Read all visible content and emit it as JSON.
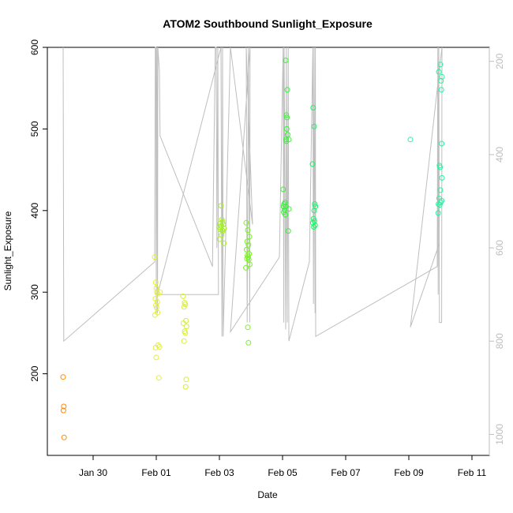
{
  "chart_data": {
    "type": "scatter",
    "title": "ATOM2 Southbound Sunlight_Exposure",
    "xlabel": "Date",
    "ylabel": "Sunlight_Exposure",
    "x_tick_labels": [
      "Jan 30",
      "Feb 01",
      "Feb 03",
      "Feb 05",
      "Feb 07",
      "Feb 09",
      "Feb 11"
    ],
    "x_tick_days": [
      0,
      2,
      4,
      6,
      8,
      10,
      12
    ],
    "xlim_days": [
      -1.45,
      12.55
    ],
    "y_ticks": [
      200,
      300,
      400,
      500,
      600
    ],
    "ylim": [
      100,
      600
    ],
    "y2_ticks": [
      200,
      400,
      600,
      800,
      1000
    ],
    "y2lim": [
      1045,
      170
    ],
    "grid": false,
    "legend": "none",
    "line_color": "#bebebe",
    "series": [
      {
        "color": "#ff8c00",
        "x_days": [
          -0.95,
          -0.93,
          -0.94,
          -0.92
        ],
        "y": [
          196,
          160,
          155,
          122
        ]
      },
      {
        "color": "#e4f03a",
        "x_days": [
          1.95,
          1.98,
          2.0,
          2.02,
          2.05,
          1.97,
          2.03,
          1.99,
          2.01,
          2.04,
          1.96,
          2.06,
          1.98,
          2.0,
          2.1,
          2.08,
          2.12
        ],
        "y": [
          343,
          312,
          305,
          300,
          298,
          292,
          288,
          284,
          281,
          275,
          272,
          235,
          232,
          220,
          233,
          195,
          300
        ]
      },
      {
        "color": "#d7f02e",
        "x_days": [
          2.85,
          2.9,
          2.92,
          2.88,
          2.94,
          2.86,
          2.96,
          2.9,
          2.92,
          2.88,
          2.95,
          2.93
        ],
        "y": [
          295,
          287,
          285,
          282,
          265,
          262,
          258,
          252,
          250,
          240,
          193,
          184
        ]
      },
      {
        "color": "#a6f02a",
        "x_days": [
          4.05,
          4.08,
          4.1,
          4.02,
          4.12,
          4.06,
          4.0,
          4.15,
          4.03,
          4.09,
          4.11,
          4.07,
          4.01,
          4.14
        ],
        "y": [
          406,
          389,
          386,
          384,
          383,
          381,
          380,
          378,
          377,
          376,
          375,
          370,
          365,
          360
        ]
      },
      {
        "color": "#7cf02a",
        "x_days": [
          4.85,
          4.9,
          4.95,
          4.88,
          4.92,
          4.86,
          4.94,
          4.89,
          4.91,
          4.87,
          4.93,
          4.96,
          4.84,
          4.9,
          4.92
        ],
        "y": [
          385,
          376,
          368,
          362,
          358,
          352,
          347,
          345,
          343,
          341,
          340,
          334,
          330,
          257,
          238
        ]
      },
      {
        "color": "#3cf03c",
        "x_days": [
          6.1,
          6.15,
          6.12,
          6.14,
          6.13,
          6.16,
          6.11,
          6.12,
          6.02,
          6.08,
          6.05,
          6.1,
          6.06,
          6.04,
          6.09,
          6.2,
          6.03,
          6.18,
          6.2
        ],
        "y": [
          584,
          548,
          517,
          514,
          500,
          493,
          487,
          485,
          426,
          410,
          408,
          405,
          401,
          398,
          395,
          402,
          405,
          375,
          487
        ]
      },
      {
        "color": "#22f06a",
        "x_days": [
          6.97,
          7.0,
          6.95,
          7.02,
          7.04,
          7.0,
          6.98,
          7.01,
          6.96,
          7.03,
          6.99
        ],
        "y": [
          526,
          503,
          457,
          408,
          405,
          400,
          390,
          387,
          385,
          382,
          380
        ]
      },
      {
        "color": "#2af0a0",
        "x_days": [
          11.0,
          10.95,
          11.05,
          11.02,
          11.03,
          11.04,
          10.97,
          10.99,
          11.05,
          11.0,
          10.96,
          11.04,
          11.01,
          10.94,
          10.98,
          10.93
        ],
        "y": [
          579,
          570,
          564,
          559,
          548,
          482,
          455,
          453,
          440,
          425,
          415,
          412,
          410,
          408,
          407,
          397
        ]
      },
      {
        "color": "#2af0b4",
        "x_days": [
          10.05
        ],
        "y": [
          487
        ]
      }
    ],
    "lines": [
      {
        "color": "#bebebe",
        "points_days_y2": [
          [
            -0.95,
            170
          ],
          [
            -0.93,
            800
          ],
          [
            1.95,
            630
          ],
          [
            1.97,
            170
          ],
          [
            1.99,
            170
          ],
          [
            2.0,
            740
          ],
          [
            2.02,
            170
          ],
          [
            2.04,
            740
          ],
          [
            2.05,
            170
          ],
          [
            2.1,
            220
          ],
          [
            2.12,
            360
          ],
          [
            3.78,
            640
          ],
          [
            3.87,
            170
          ],
          [
            3.9,
            170
          ],
          [
            3.92,
            600
          ],
          [
            3.95,
            170
          ],
          [
            3.97,
            700
          ],
          [
            2.04,
            700
          ],
          [
            4.05,
            170
          ],
          [
            4.08,
            790
          ],
          [
            4.1,
            170
          ],
          [
            4.12,
            790
          ],
          [
            4.35,
            170
          ],
          [
            5.05,
            550
          ],
          [
            4.85,
            170
          ],
          [
            4.88,
            760
          ],
          [
            4.92,
            170
          ],
          [
            4.96,
            760
          ],
          [
            4.97,
            170
          ],
          [
            4.35,
            780
          ],
          [
            5.9,
            620
          ],
          [
            6.02,
            170
          ],
          [
            6.04,
            760
          ],
          [
            6.05,
            170
          ],
          [
            6.1,
            775
          ],
          [
            6.12,
            170
          ],
          [
            6.15,
            760
          ],
          [
            6.18,
            170
          ],
          [
            6.2,
            800
          ],
          [
            6.85,
            630
          ],
          [
            6.96,
            170
          ],
          [
            6.98,
            720
          ],
          [
            7.0,
            170
          ],
          [
            7.03,
            740
          ],
          [
            7.04,
            170
          ],
          [
            7.05,
            790
          ],
          [
            10.9,
            640
          ],
          [
            10.92,
            170
          ],
          [
            10.93,
            700
          ],
          [
            10.95,
            170
          ],
          [
            10.97,
            760
          ],
          [
            11.04,
            760
          ],
          [
            11.05,
            170
          ],
          [
            10.05,
            770
          ],
          [
            10.97,
            590
          ]
        ]
      }
    ]
  }
}
